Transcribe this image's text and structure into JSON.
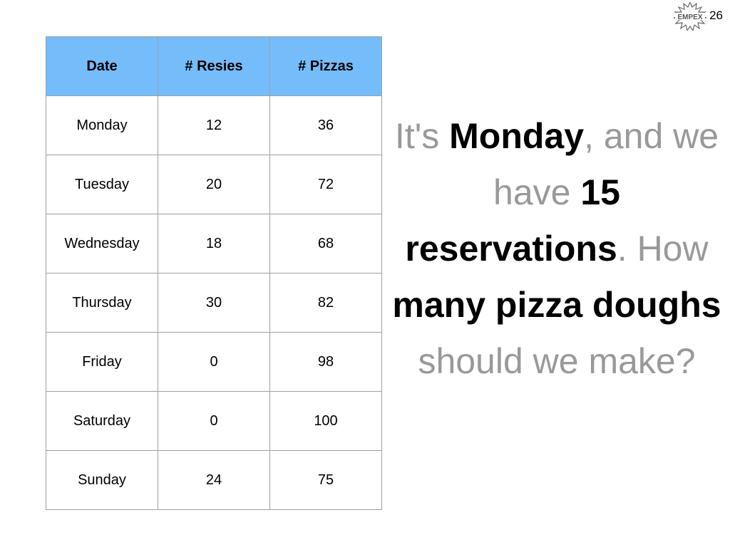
{
  "slide": {
    "number": "26",
    "logo_text": "EMPEX"
  },
  "table": {
    "headers": [
      "Date",
      "# Resies",
      "# Pizzas"
    ],
    "rows": [
      [
        "Monday",
        "12",
        "36"
      ],
      [
        "Tuesday",
        "20",
        "72"
      ],
      [
        "Wednesday",
        "18",
        "68"
      ],
      [
        "Thursday",
        "30",
        "82"
      ],
      [
        "Friday",
        "0",
        "98"
      ],
      [
        "Saturday",
        "0",
        "100"
      ],
      [
        "Sunday",
        "24",
        "75"
      ]
    ]
  },
  "question": {
    "segments": [
      {
        "text": "It's ",
        "emphasis": false
      },
      {
        "text": "Monday",
        "emphasis": true
      },
      {
        "text": ", and we have ",
        "emphasis": false
      },
      {
        "text": "15 reservations",
        "emphasis": true
      },
      {
        "text": ". How ",
        "emphasis": false
      },
      {
        "text": "many pizza doughs",
        "emphasis": true
      },
      {
        "text": " should we make?",
        "emphasis": false
      }
    ]
  },
  "colors": {
    "header_bg": "#75bdfa",
    "muted_text": "#999999",
    "emphasis_text": "#000000"
  }
}
